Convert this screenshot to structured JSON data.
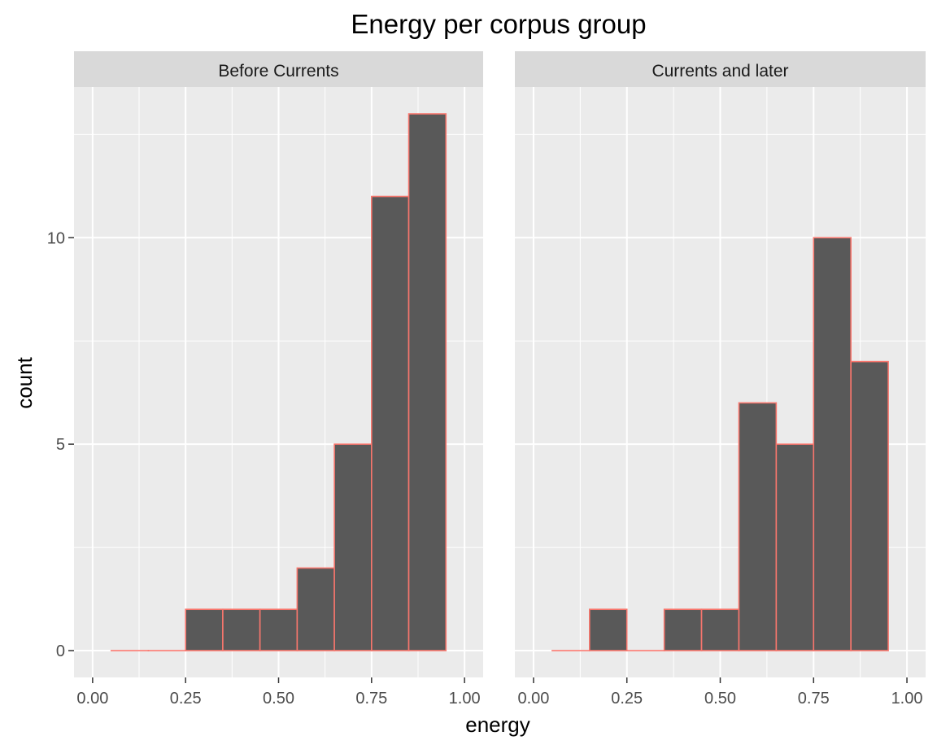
{
  "chart_data": {
    "type": "bar",
    "title": "Energy per corpus group",
    "xlabel": "energy",
    "ylabel": "count",
    "xlim": [
      -0.05,
      1.05
    ],
    "ylim": [
      -0.65,
      13.65
    ],
    "x_ticks": [
      "0.00",
      "0.25",
      "0.50",
      "0.75",
      "1.00"
    ],
    "x_tick_values": [
      0,
      0.25,
      0.5,
      0.75,
      1.0
    ],
    "y_ticks": [
      "0",
      "5",
      "10"
    ],
    "y_tick_values": [
      0,
      5,
      10
    ],
    "bin_edges": [
      0.05,
      0.15,
      0.25,
      0.35,
      0.45,
      0.55,
      0.65,
      0.75,
      0.85,
      0.95
    ],
    "fill_color": "#595959",
    "outline_color": "#F8766D",
    "panel_background": "#EBEBEB",
    "strip_background": "#D9D9D9",
    "grid": true,
    "legend": "none",
    "panels": [
      {
        "name": "Before Currents",
        "values": [
          0,
          0,
          1,
          1,
          1,
          2,
          5,
          11,
          13
        ]
      },
      {
        "name": "Currents and later",
        "values": [
          0,
          1,
          0,
          1,
          1,
          6,
          5,
          10,
          7
        ]
      }
    ]
  }
}
